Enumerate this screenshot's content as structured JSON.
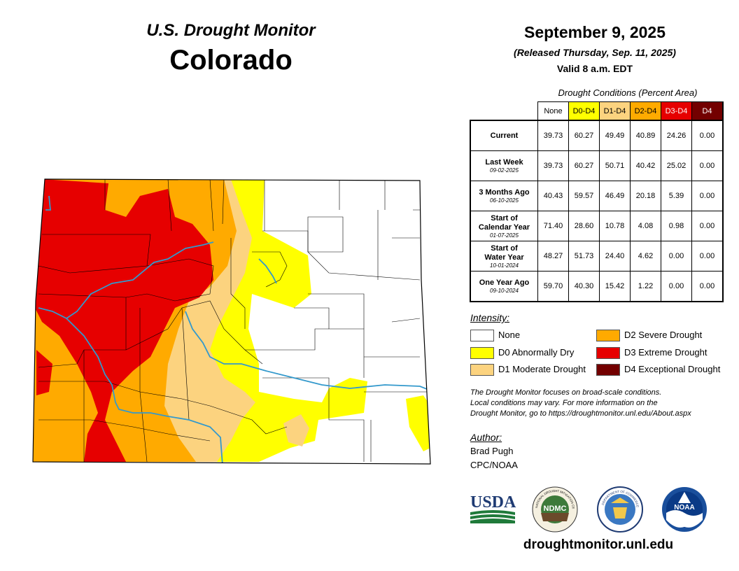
{
  "header": {
    "subtitle": "U.S. Drought Monitor",
    "state": "Colorado",
    "date": "September 9, 2025",
    "released": "(Released Thursday, Sep. 11, 2025)",
    "valid": "Valid 8 a.m. EDT"
  },
  "table": {
    "caption": "Drought Conditions (Percent Area)",
    "columns": [
      {
        "label": "None",
        "color": "#ffffff",
        "text_color": "#000000"
      },
      {
        "label": "D0-D4",
        "color": "#ffff00",
        "text_color": "#000000"
      },
      {
        "label": "D1-D4",
        "color": "#fcd37f",
        "text_color": "#000000"
      },
      {
        "label": "D2-D4",
        "color": "#ffaa00",
        "text_color": "#000000"
      },
      {
        "label": "D3-D4",
        "color": "#e60000",
        "text_color": "#ffffff"
      },
      {
        "label": "D4",
        "color": "#730000",
        "text_color": "#ffffff"
      }
    ],
    "rows": [
      {
        "label_lines": [
          "Current"
        ],
        "date": "",
        "values": [
          "39.73",
          "60.27",
          "49.49",
          "40.89",
          "24.26",
          "0.00"
        ]
      },
      {
        "label_lines": [
          "Last Week"
        ],
        "date": "09-02-2025",
        "values": [
          "39.73",
          "60.27",
          "50.71",
          "40.42",
          "25.02",
          "0.00"
        ]
      },
      {
        "label_lines": [
          "3 Months Ago"
        ],
        "date": "06-10-2025",
        "values": [
          "40.43",
          "59.57",
          "46.49",
          "20.18",
          "5.39",
          "0.00"
        ]
      },
      {
        "label_lines": [
          "Start of",
          "Calendar Year"
        ],
        "date": "01-07-2025",
        "values": [
          "71.40",
          "28.60",
          "10.78",
          "4.08",
          "0.98",
          "0.00"
        ]
      },
      {
        "label_lines": [
          "Start of",
          "Water Year"
        ],
        "date": "10-01-2024",
        "values": [
          "48.27",
          "51.73",
          "24.40",
          "4.62",
          "0.00",
          "0.00"
        ]
      },
      {
        "label_lines": [
          "One Year Ago"
        ],
        "date": "09-10-2024",
        "values": [
          "59.70",
          "40.30",
          "15.42",
          "1.22",
          "0.00",
          "0.00"
        ]
      }
    ]
  },
  "legend": {
    "heading": "Intensity:",
    "items": [
      {
        "label": "None",
        "color": "#ffffff"
      },
      {
        "label": "D0 Abnormally Dry",
        "color": "#ffff00"
      },
      {
        "label": "D1 Moderate Drought",
        "color": "#fcd37f"
      },
      {
        "label": "D2 Severe Drought",
        "color": "#ffaa00"
      },
      {
        "label": "D3 Extreme Drought",
        "color": "#e60000"
      },
      {
        "label": "D4 Exceptional Drought",
        "color": "#730000"
      }
    ]
  },
  "note": {
    "lines": [
      "The Drought Monitor focuses on broad-scale conditions.",
      "Local conditions may vary. For more information on the",
      "Drought Monitor, go to https://droughtmonitor.unl.edu/About.aspx"
    ]
  },
  "author": {
    "heading": "Author:",
    "name": "Brad Pugh",
    "org": "CPC/NOAA"
  },
  "logos": {
    "usda": "USDA",
    "ndmc": "NDMC",
    "ndmc_ring_text": "NATIONAL DROUGHT MITIGATION CENTER",
    "commerce_ring_text": "DEPARTMENT OF COMMERCE",
    "noaa": "NOAA"
  },
  "footer": {
    "site": "droughtmonitor.unl.edu"
  }
}
